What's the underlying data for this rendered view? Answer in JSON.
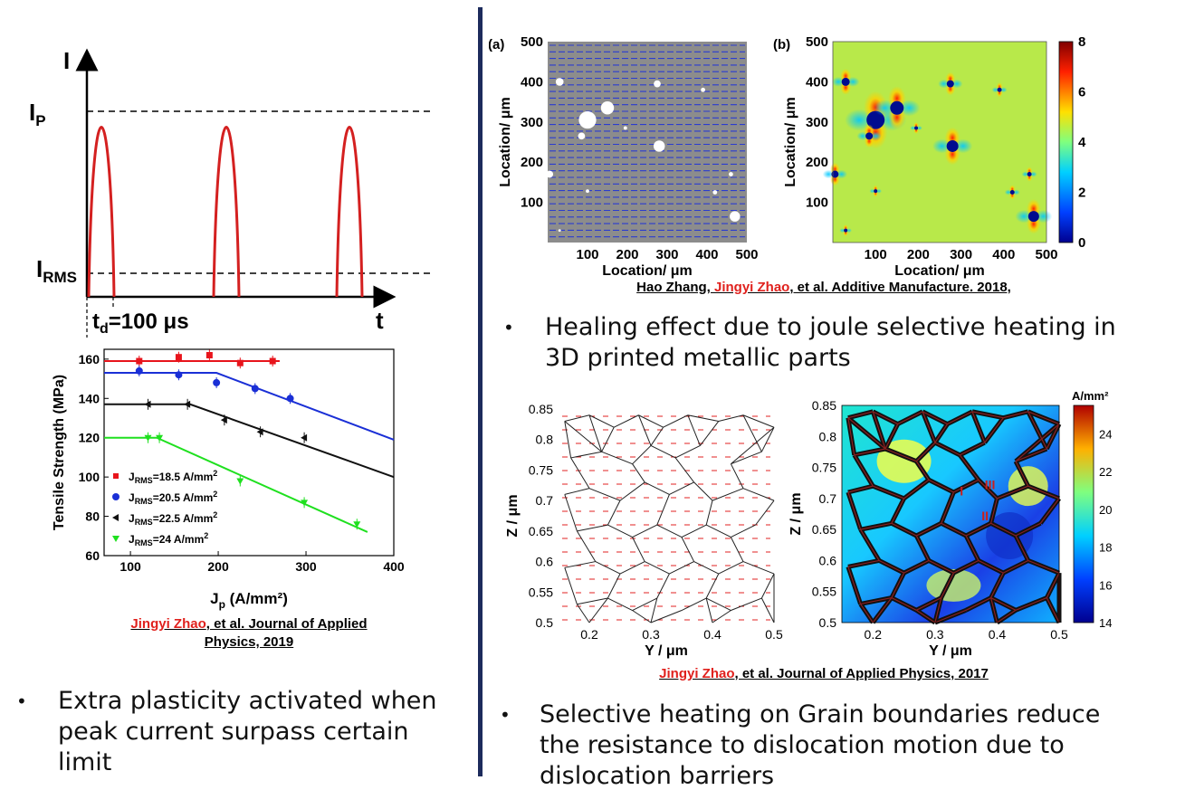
{
  "pulse_figure": {
    "y_axis": "I",
    "x_axis": "t",
    "ip_label": "I",
    "ip_sub": "P",
    "irms_label": "I",
    "irms_sub": "RMS",
    "td_label": "t",
    "td_sub": "d",
    "td_value": "=100 μs",
    "colors": {
      "pulse": "#d42020"
    }
  },
  "tensile_chart": {
    "chart_data": {
      "type": "scatter",
      "xlabel": "J",
      "xlabel_sub": "p",
      "xlabel_unit": " (A/mm²)",
      "ylabel": "Tensile Strength (MPa)",
      "xlim": [
        70,
        400
      ],
      "ylim": [
        60,
        165
      ],
      "x_ticks": [
        "100",
        "200",
        "300",
        "400"
      ],
      "y_ticks": [
        "60",
        "80",
        "100",
        "120",
        "140",
        "160"
      ],
      "series": [
        {
          "name": "J_RMS=18.5 A/mm2",
          "label_main": "J",
          "label_sub": "RMS",
          "label_rest": "=18.5 A/mm",
          "color": "#e8141c",
          "points": [
            [
              110,
              159
            ],
            [
              155,
              161
            ],
            [
              190,
              162
            ],
            [
              225,
              158
            ],
            [
              262,
              159
            ]
          ],
          "fit": [
            [
              70,
              159
            ],
            [
              270,
              159
            ]
          ]
        },
        {
          "name": "J_RMS=20.5 A/mm2",
          "label_main": "J",
          "label_sub": "RMS",
          "label_rest": "=20.5 A/mm",
          "color": "#1a2fd6",
          "points": [
            [
              110,
              154
            ],
            [
              155,
              152
            ],
            [
              198,
              148
            ],
            [
              242,
              145
            ],
            [
              282,
              140
            ]
          ],
          "fit": [
            [
              70,
              153
            ],
            [
              198,
              153
            ],
            [
              400,
              119
            ]
          ]
        },
        {
          "name": "J_RMS=22.5 A/mm2",
          "label_main": "J",
          "label_sub": "RMS",
          "label_rest": "=22.5 A/mm",
          "color": "#111111",
          "points": [
            [
              120,
              137
            ],
            [
              165,
              137
            ],
            [
              207,
              129
            ],
            [
              248,
              123
            ],
            [
              298,
              120
            ]
          ],
          "fit": [
            [
              70,
              137
            ],
            [
              168,
              137
            ],
            [
              400,
              100
            ]
          ]
        },
        {
          "name": "J_RMS=24 A/mm2",
          "label_main": "J",
          "label_sub": "RMS",
          "label_rest": "=24 A/mm",
          "color": "#1fe01f",
          "points": [
            [
              120,
              120
            ],
            [
              133,
              120
            ],
            [
              225,
              98
            ],
            [
              298,
              87
            ],
            [
              358,
              76
            ]
          ],
          "fit": [
            [
              70,
              120
            ],
            [
              130,
              120
            ],
            [
              370,
              72
            ]
          ]
        }
      ]
    }
  },
  "citation_left": {
    "author": "Jingyi Zhao",
    "rest_line1": ", et al. Journal of Applied",
    "rest_line2": "Physics, 2019"
  },
  "bullet_left": {
    "marker": "•",
    "text": "Extra plasticity activated when peak current surpass certain limit"
  },
  "map_a": {
    "panel": "(a)",
    "ylabel": "Location/ μm",
    "xlabel": "Location/ μm",
    "x_ticks": [
      "100",
      "200",
      "300",
      "400",
      "500"
    ],
    "y_ticks": [
      "100",
      "200",
      "300",
      "400",
      "500"
    ]
  },
  "map_b": {
    "panel": "(b)",
    "ylabel": "Location/ μm",
    "xlabel": "Location/ μm",
    "x_ticks": [
      "100",
      "200",
      "300",
      "400",
      "500"
    ],
    "y_ticks": [
      "100",
      "200",
      "300",
      "400",
      "500"
    ],
    "colorbar_ticks": [
      "0",
      "2",
      "4",
      "6",
      "8"
    ]
  },
  "citation_top": {
    "pre": "Hao Zhang, ",
    "author": "Jingyi Zhao",
    "rest": ", et al. Additive Manufacture. 2018,"
  },
  "bullet_top": {
    "marker": "•",
    "text": "Healing effect due to joule selective heating in 3D printed metallic parts"
  },
  "grain_left": {
    "ylabel": "Z / μm",
    "xlabel": "Y / μm",
    "x_ticks": [
      "0.2",
      "0.3",
      "0.4",
      "0.5"
    ],
    "y_ticks": [
      "0.5",
      "0.55",
      "0.6",
      "0.65",
      "0.7",
      "0.75",
      "0.8",
      "0.85"
    ]
  },
  "grain_right": {
    "ylabel": "Z / μm",
    "xlabel": "Y / μm",
    "x_ticks": [
      "0.2",
      "0.3",
      "0.4",
      "0.5"
    ],
    "y_ticks": [
      "0.5",
      "0.55",
      "0.6",
      "0.65",
      "0.7",
      "0.75",
      "0.8",
      "0.85"
    ],
    "colorbar_title": "A/mm²",
    "colorbar_ticks": [
      "14",
      "16",
      "18",
      "20",
      "22",
      "24"
    ],
    "annotations": [
      "I",
      "II",
      "III"
    ]
  },
  "citation_bottom": {
    "author": "Jingyi Zhao",
    "rest": ", et al. Journal of Applied Physics, 2017"
  },
  "bullet_bottom": {
    "marker": "•",
    "text": "Selective heating on Grain boundaries reduce the resistance to dislocation motion due to dislocation barriers"
  }
}
